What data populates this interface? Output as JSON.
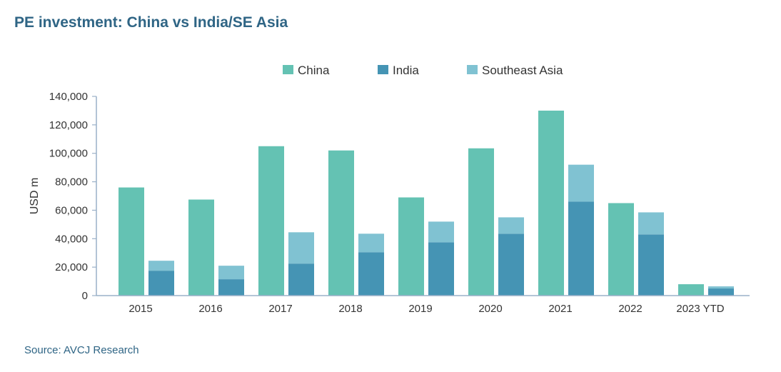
{
  "title": "PE investment: China vs India/SE Asia",
  "source": "Source: AVCJ Research",
  "colors": {
    "china": "#64c2b3",
    "india": "#4594b4",
    "southeast_asia": "#80c2d2",
    "axis": "#9ab0c8",
    "title": "#2f6585"
  },
  "chart_data": {
    "type": "bar",
    "title": "PE investment: China vs India/SE Asia",
    "xlabel": "",
    "ylabel": "USD m",
    "ylim": [
      0,
      140000
    ],
    "yticks": [
      0,
      20000,
      40000,
      60000,
      80000,
      100000,
      120000,
      140000
    ],
    "ytick_labels": [
      "0",
      "20,000",
      "40,000",
      "60,000",
      "80,000",
      "100,000",
      "120,000",
      "140,000"
    ],
    "grid": false,
    "legend_position": "top",
    "categories": [
      "2015",
      "2016",
      "2017",
      "2018",
      "2019",
      "2020",
      "2021",
      "2022",
      "2023 YTD"
    ],
    "series": [
      {
        "name": "China",
        "stack": "china",
        "color": "#64c2b3",
        "values": [
          76000,
          67500,
          105000,
          102000,
          69000,
          103500,
          130000,
          65000,
          8000
        ]
      },
      {
        "name": "India",
        "stack": "india_sea",
        "color": "#4594b4",
        "values": [
          17500,
          11500,
          22500,
          30500,
          37500,
          43500,
          66000,
          43000,
          5000
        ]
      },
      {
        "name": "Southeast Asia",
        "stack": "india_sea",
        "color": "#80c2d2",
        "values": [
          7000,
          9500,
          22000,
          13000,
          14500,
          11500,
          26000,
          15500,
          1500
        ]
      }
    ]
  }
}
